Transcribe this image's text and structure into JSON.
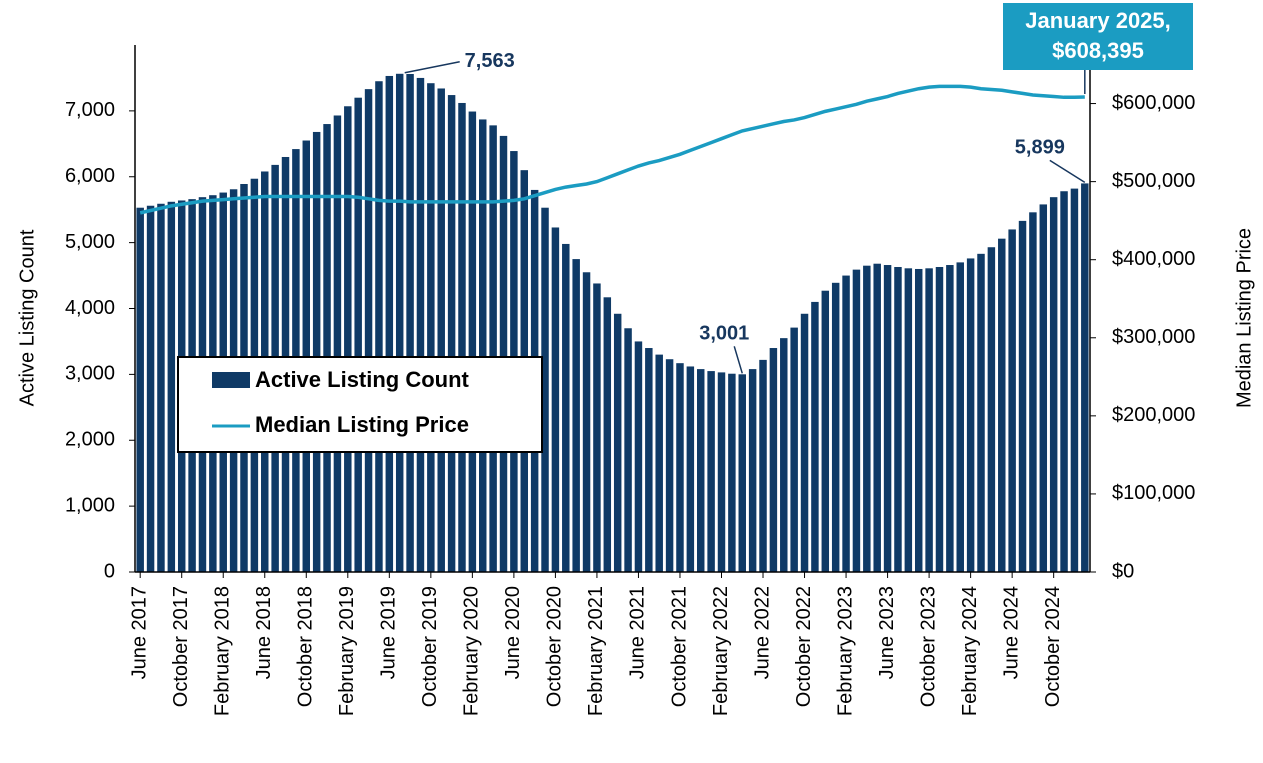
{
  "chart_data": {
    "type": "bar-line",
    "categories": [
      "June 2017",
      null,
      null,
      null,
      "October 2017",
      null,
      null,
      null,
      "February 2018",
      null,
      null,
      null,
      "June 2018",
      null,
      null,
      null,
      "October 2018",
      null,
      null,
      null,
      "February 2019",
      null,
      null,
      null,
      "June 2019",
      null,
      null,
      null,
      "October 2019",
      null,
      null,
      null,
      "February 2020",
      null,
      null,
      null,
      "June 2020",
      null,
      null,
      null,
      "October 2020",
      null,
      null,
      null,
      "February 2021",
      null,
      null,
      null,
      "June 2021",
      null,
      null,
      null,
      "October 2021",
      null,
      null,
      null,
      "February 2022",
      null,
      null,
      null,
      "June 2022",
      null,
      null,
      null,
      "October 2022",
      null,
      null,
      null,
      "February 2023",
      null,
      null,
      null,
      "June 2023",
      null,
      null,
      null,
      "October 2023",
      null,
      null,
      null,
      "February 2024",
      null,
      null,
      null,
      "June 2024",
      null,
      null,
      null,
      "October 2024",
      null,
      null,
      null
    ],
    "series": [
      {
        "name": "Active Listing Count",
        "type": "bar",
        "color": "#0f3a66",
        "values": [
          5530,
          5560,
          5590,
          5620,
          5640,
          5660,
          5690,
          5720,
          5760,
          5810,
          5890,
          5970,
          6080,
          6180,
          6300,
          6420,
          6550,
          6680,
          6800,
          6930,
          7070,
          7200,
          7330,
          7450,
          7530,
          7563,
          7560,
          7500,
          7420,
          7340,
          7240,
          7120,
          6990,
          6870,
          6780,
          6620,
          6390,
          6100,
          5800,
          5530,
          5230,
          4980,
          4750,
          4550,
          4380,
          4170,
          3920,
          3700,
          3500,
          3400,
          3300,
          3230,
          3170,
          3120,
          3080,
          3050,
          3030,
          3010,
          3001,
          3080,
          3220,
          3400,
          3550,
          3710,
          3920,
          4100,
          4270,
          4390,
          4500,
          4590,
          4650,
          4680,
          4660,
          4630,
          4610,
          4600,
          4610,
          4630,
          4660,
          4700,
          4760,
          4830,
          4930,
          5060,
          5200,
          5330,
          5460,
          5580,
          5690,
          5780,
          5820,
          5899
        ],
        "value_labels": [
          null,
          null,
          null,
          null,
          null,
          null,
          null,
          null,
          null,
          null,
          null,
          null,
          null,
          null,
          null,
          null,
          null,
          null,
          null,
          null,
          null,
          null,
          null,
          null,
          null,
          "7,563",
          null,
          null,
          null,
          null,
          null,
          null,
          null,
          null,
          null,
          null,
          null,
          null,
          null,
          null,
          null,
          null,
          null,
          null,
          null,
          null,
          null,
          null,
          null,
          null,
          null,
          null,
          null,
          null,
          null,
          null,
          null,
          null,
          "3,001",
          null,
          null,
          null,
          null,
          null,
          null,
          null,
          null,
          null,
          null,
          null,
          null,
          null,
          null,
          null,
          null,
          null,
          null,
          null,
          null,
          null,
          null,
          null,
          null,
          null,
          null,
          null,
          null,
          null,
          null,
          null,
          null,
          "5,899"
        ]
      },
      {
        "name": "Median Listing Price",
        "type": "line",
        "axis": "y2",
        "color": "#1b9cc2",
        "values": [
          460000,
          463000,
          466000,
          469000,
          471000,
          473000,
          475000,
          476000,
          477000,
          478000,
          479000,
          480000,
          481000,
          481000,
          481000,
          481000,
          481000,
          481000,
          481000,
          481000,
          481000,
          480000,
          478000,
          476000,
          475000,
          475000,
          474000,
          474000,
          474000,
          474000,
          474000,
          474000,
          474000,
          474000,
          474000,
          475000,
          476000,
          478000,
          482000,
          486000,
          490000,
          493000,
          495000,
          497000,
          500000,
          505000,
          510000,
          515000,
          520000,
          524000,
          527000,
          531000,
          535000,
          540000,
          545000,
          550000,
          555000,
          560000,
          565000,
          568000,
          571000,
          574000,
          577000,
          579000,
          582000,
          586000,
          590000,
          593000,
          596000,
          599000,
          603000,
          606000,
          609000,
          613000,
          616000,
          619000,
          621000,
          622000,
          622000,
          622000,
          621000,
          619000,
          618000,
          617000,
          615000,
          613000,
          611000,
          610000,
          609000,
          608000,
          608000,
          608395
        ],
        "value_labels": [
          null,
          null,
          null,
          null,
          null,
          null,
          null,
          null,
          null,
          null,
          null,
          null,
          null,
          null,
          null,
          null,
          null,
          null,
          null,
          null,
          null,
          null,
          null,
          null,
          null,
          null,
          null,
          null,
          null,
          null,
          null,
          null,
          null,
          null,
          null,
          null,
          null,
          null,
          null,
          null,
          null,
          null,
          null,
          null,
          null,
          null,
          null,
          null,
          null,
          null,
          null,
          null,
          null,
          null,
          null,
          null,
          null,
          null,
          null,
          null,
          null,
          null,
          null,
          null,
          null,
          null,
          null,
          null,
          null,
          null,
          null,
          null,
          null,
          null,
          null,
          null,
          null,
          null,
          null,
          null,
          null,
          null,
          null,
          null,
          null,
          null,
          null,
          null,
          null,
          null,
          null,
          "$608,395"
        ]
      }
    ],
    "annotations": [
      "January 2025,"
    ],
    "ylabel": "Active Listing Count",
    "y2label": "Median Listing Price",
    "ylim": [
      0,
      8000
    ],
    "yticks": [
      0,
      {
        "value": 1000,
        "label": "1,000"
      },
      {
        "value": 2000,
        "label": "2,000"
      },
      {
        "value": 3000,
        "label": "3,000"
      },
      {
        "value": 4000,
        "label": "4,000"
      },
      {
        "value": 5000,
        "label": "5,000"
      },
      {
        "value": 6000,
        "label": "6,000"
      },
      {
        "value": 7000,
        "label": "7,000"
      }
    ],
    "y2lim": [
      0,
      675000
    ],
    "y2ticks": [
      {
        "value": 0,
        "label": "$0"
      },
      {
        "value": 100000,
        "label": "$100,000"
      },
      {
        "value": 200000,
        "label": "$200,000"
      },
      {
        "value": 300000,
        "label": "$300,000"
      },
      {
        "value": 400000,
        "label": "$400,000"
      },
      {
        "value": 500000,
        "label": "$500,000"
      },
      {
        "value": 600000,
        "label": "$600,000"
      }
    ],
    "legend": "center-left",
    "grid": false
  }
}
